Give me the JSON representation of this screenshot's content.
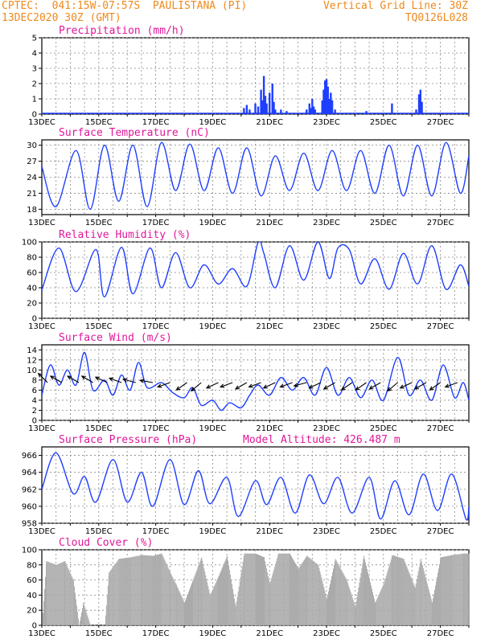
{
  "header": {
    "line1": "CPTEC:  041:15W-07:57S  PAULISTANA (PI)",
    "line2": "13DEC2020 30Z (GMT)",
    "grid_note": "Vertical Grid Line: 30Z",
    "code": "TQ0126L028"
  },
  "x_labels": [
    "13DEC",
    "15DEC",
    "17DEC",
    "19DEC",
    "21DEC",
    "23DEC",
    "25DEC",
    "27DEC"
  ],
  "chart_data": [
    {
      "id": "precip",
      "type": "bar",
      "title": "Precipitation (mm/h)",
      "ylim": [
        0,
        5
      ],
      "yticks": [
        0,
        1,
        2,
        3,
        4,
        5
      ],
      "color": "#1f3fff",
      "points": [
        [
          20.1,
          0.4
        ],
        [
          20.2,
          0.6
        ],
        [
          20.3,
          0.3
        ],
        [
          20.5,
          0.7
        ],
        [
          20.6,
          0.5
        ],
        [
          20.7,
          1.6
        ],
        [
          20.75,
          0.9
        ],
        [
          20.8,
          2.5
        ],
        [
          20.85,
          1.2
        ],
        [
          20.9,
          0.7
        ],
        [
          21.0,
          1.4
        ],
        [
          21.1,
          2.0
        ],
        [
          21.15,
          0.8
        ],
        [
          21.2,
          0.3
        ],
        [
          21.4,
          0.3
        ],
        [
          21.6,
          0.2
        ],
        [
          22.3,
          0.3
        ],
        [
          22.4,
          0.7
        ],
        [
          22.45,
          0.4
        ],
        [
          22.5,
          1.0
        ],
        [
          22.55,
          0.5
        ],
        [
          22.6,
          0.3
        ],
        [
          22.85,
          0.9
        ],
        [
          22.9,
          1.6
        ],
        [
          22.95,
          2.2
        ],
        [
          23.0,
          2.3
        ],
        [
          23.05,
          1.8
        ],
        [
          23.1,
          1.0
        ],
        [
          23.15,
          1.4
        ],
        [
          23.2,
          0.9
        ],
        [
          23.3,
          0.3
        ],
        [
          24.4,
          0.2
        ],
        [
          25.3,
          0.7
        ],
        [
          26.15,
          0.3
        ],
        [
          26.25,
          1.3
        ],
        [
          26.3,
          1.6
        ],
        [
          26.35,
          0.8
        ]
      ]
    },
    {
      "id": "temp",
      "type": "line",
      "title": "Surface Temperature (nC)",
      "ylim": [
        17,
        31
      ],
      "yticks": [
        18,
        21,
        24,
        27,
        30
      ],
      "color": "#1f3fff",
      "points": [
        [
          13.0,
          26
        ],
        [
          13.5,
          18.5
        ],
        [
          14.2,
          29
        ],
        [
          14.7,
          18
        ],
        [
          15.2,
          30
        ],
        [
          15.7,
          19.5
        ],
        [
          16.2,
          30
        ],
        [
          16.7,
          18.5
        ],
        [
          17.2,
          30.5
        ],
        [
          17.7,
          21.5
        ],
        [
          18.2,
          30.2
        ],
        [
          18.7,
          21.5
        ],
        [
          19.2,
          29.5
        ],
        [
          19.7,
          21
        ],
        [
          20.2,
          29.5
        ],
        [
          20.7,
          20.5
        ],
        [
          21.2,
          28
        ],
        [
          21.7,
          21.5
        ],
        [
          22.2,
          28.5
        ],
        [
          22.7,
          21.5
        ],
        [
          23.2,
          29
        ],
        [
          23.7,
          21.5
        ],
        [
          24.2,
          29
        ],
        [
          24.7,
          21
        ],
        [
          25.2,
          30
        ],
        [
          25.7,
          20.5
        ],
        [
          26.2,
          30
        ],
        [
          26.7,
          20.5
        ],
        [
          27.2,
          30.5
        ],
        [
          27.7,
          21
        ],
        [
          28.0,
          28
        ]
      ]
    },
    {
      "id": "rh",
      "type": "line",
      "title": "Relative Humidity (%)",
      "ylim": [
        0,
        100
      ],
      "yticks": [
        0,
        20,
        40,
        60,
        80,
        100
      ],
      "color": "#1f3fff",
      "points": [
        [
          13.0,
          37
        ],
        [
          13.6,
          92
        ],
        [
          14.2,
          35
        ],
        [
          14.9,
          90
        ],
        [
          15.2,
          28
        ],
        [
          15.8,
          93
        ],
        [
          16.2,
          32
        ],
        [
          16.8,
          92
        ],
        [
          17.2,
          40
        ],
        [
          17.7,
          86
        ],
        [
          18.2,
          40
        ],
        [
          18.7,
          70
        ],
        [
          19.2,
          45
        ],
        [
          19.7,
          65
        ],
        [
          20.2,
          42
        ],
        [
          20.6,
          100
        ],
        [
          20.8,
          85
        ],
        [
          21.2,
          40
        ],
        [
          21.7,
          95
        ],
        [
          22.2,
          50
        ],
        [
          22.7,
          100
        ],
        [
          23.1,
          52
        ],
        [
          23.4,
          92
        ],
        [
          23.8,
          90
        ],
        [
          24.2,
          45
        ],
        [
          24.7,
          78
        ],
        [
          25.2,
          38
        ],
        [
          25.7,
          85
        ],
        [
          26.2,
          45
        ],
        [
          26.7,
          95
        ],
        [
          27.2,
          38
        ],
        [
          27.7,
          70
        ],
        [
          28.0,
          42
        ]
      ]
    },
    {
      "id": "wind",
      "type": "line",
      "title": "Surface Wind (m/s)",
      "ylim": [
        0,
        15
      ],
      "yticks": [
        0,
        2,
        4,
        6,
        8,
        10,
        12,
        14
      ],
      "color": "#1f3fff",
      "points": [
        [
          13.0,
          5
        ],
        [
          13.3,
          11
        ],
        [
          13.6,
          7
        ],
        [
          13.9,
          10
        ],
        [
          14.2,
          7
        ],
        [
          14.5,
          13.5
        ],
        [
          14.8,
          6
        ],
        [
          15.2,
          8
        ],
        [
          15.5,
          5
        ],
        [
          15.8,
          9
        ],
        [
          16.1,
          6
        ],
        [
          16.4,
          11.5
        ],
        [
          16.7,
          6.5
        ],
        [
          17.2,
          7.5
        ],
        [
          17.6,
          5.5
        ],
        [
          18.0,
          4.5
        ],
        [
          18.3,
          6.5
        ],
        [
          18.6,
          3
        ],
        [
          19.0,
          4
        ],
        [
          19.3,
          2
        ],
        [
          19.6,
          3.5
        ],
        [
          20.0,
          2.5
        ],
        [
          20.3,
          5
        ],
        [
          20.6,
          7
        ],
        [
          21.0,
          5
        ],
        [
          21.4,
          8.5
        ],
        [
          21.8,
          6
        ],
        [
          22.2,
          8.5
        ],
        [
          22.6,
          5
        ],
        [
          23.0,
          10.5
        ],
        [
          23.4,
          5
        ],
        [
          23.8,
          8.5
        ],
        [
          24.2,
          4.5
        ],
        [
          24.6,
          8
        ],
        [
          25.0,
          4
        ],
        [
          25.5,
          12.5
        ],
        [
          25.9,
          5
        ],
        [
          26.3,
          8
        ],
        [
          26.7,
          4
        ],
        [
          27.1,
          11
        ],
        [
          27.5,
          4.5
        ],
        [
          27.8,
          7.5
        ],
        [
          28.0,
          4
        ]
      ],
      "arrows": [
        [
          13.2,
          7.5,
          135
        ],
        [
          13.7,
          7.5,
          150
        ],
        [
          14.3,
          7.5,
          150
        ],
        [
          14.8,
          7.5,
          150
        ],
        [
          15.3,
          7.5,
          155
        ],
        [
          15.8,
          7.5,
          160
        ],
        [
          16.3,
          7.5,
          165
        ],
        [
          16.9,
          7.5,
          170
        ],
        [
          17.5,
          7.5,
          200
        ],
        [
          18.1,
          7.5,
          215
        ],
        [
          18.6,
          7.5,
          220
        ],
        [
          19.2,
          7.5,
          205
        ],
        [
          19.7,
          7.5,
          200
        ],
        [
          20.2,
          7.5,
          210
        ],
        [
          20.7,
          7.5,
          200
        ],
        [
          21.2,
          7.5,
          205
        ],
        [
          21.8,
          7.5,
          200
        ],
        [
          22.3,
          7.5,
          195
        ],
        [
          22.8,
          7.5,
          205
        ],
        [
          23.3,
          7.5,
          210
        ],
        [
          23.9,
          7.5,
          215
        ],
        [
          24.4,
          7.5,
          215
        ],
        [
          24.9,
          7.5,
          210
        ],
        [
          25.5,
          7.5,
          220
        ],
        [
          26.0,
          7.5,
          205
        ],
        [
          26.5,
          7.5,
          210
        ],
        [
          27.0,
          7.5,
          215
        ],
        [
          27.6,
          7.5,
          200
        ]
      ]
    },
    {
      "id": "pres",
      "type": "line",
      "title": "Surface Pressure (hPa)",
      "subtitle": "Model Altitude: 426.487 m",
      "ylim": [
        958,
        967
      ],
      "yticks": [
        958,
        960,
        962,
        964,
        966
      ],
      "color": "#1f3fff",
      "points": [
        [
          13.0,
          962
        ],
        [
          13.5,
          966.3
        ],
        [
          14.1,
          961.5
        ],
        [
          14.5,
          963.5
        ],
        [
          14.9,
          960.5
        ],
        [
          15.5,
          965.5
        ],
        [
          16.0,
          960.5
        ],
        [
          16.5,
          964
        ],
        [
          16.9,
          960
        ],
        [
          17.5,
          965.5
        ],
        [
          18.0,
          960.2
        ],
        [
          18.5,
          964.2
        ],
        [
          18.9,
          960.3
        ],
        [
          19.5,
          963.4
        ],
        [
          19.9,
          958.8
        ],
        [
          20.5,
          963
        ],
        [
          20.9,
          960.2
        ],
        [
          21.4,
          963.4
        ],
        [
          21.9,
          959.2
        ],
        [
          22.4,
          963.7
        ],
        [
          22.9,
          960.3
        ],
        [
          23.4,
          963.4
        ],
        [
          23.9,
          959.2
        ],
        [
          24.5,
          963.4
        ],
        [
          24.9,
          958.5
        ],
        [
          25.4,
          963
        ],
        [
          25.9,
          959
        ],
        [
          26.4,
          963.8
        ],
        [
          26.9,
          959.5
        ],
        [
          27.4,
          963.8
        ],
        [
          27.9,
          958.5
        ],
        [
          28.0,
          960
        ]
      ]
    },
    {
      "id": "cloud",
      "type": "area",
      "title": "Cloud Cover (%)",
      "ylim": [
        0,
        100
      ],
      "yticks": [
        0,
        20,
        40,
        60,
        80,
        100
      ],
      "color": "#aaaaaa",
      "points": [
        [
          13.0,
          0
        ],
        [
          13.15,
          85
        ],
        [
          13.5,
          80
        ],
        [
          13.8,
          85
        ],
        [
          14.1,
          60
        ],
        [
          14.3,
          0
        ],
        [
          14.45,
          30
        ],
        [
          14.7,
          0
        ],
        [
          15.2,
          0
        ],
        [
          15.35,
          70
        ],
        [
          15.7,
          88
        ],
        [
          16.1,
          90
        ],
        [
          16.5,
          93
        ],
        [
          16.9,
          92
        ],
        [
          17.2,
          95
        ],
        [
          17.5,
          70
        ],
        [
          17.7,
          55
        ],
        [
          18.0,
          30
        ],
        [
          18.3,
          60
        ],
        [
          18.6,
          90
        ],
        [
          18.9,
          40
        ],
        [
          19.2,
          65
        ],
        [
          19.5,
          92
        ],
        [
          19.8,
          25
        ],
        [
          20.1,
          95
        ],
        [
          20.5,
          95
        ],
        [
          20.8,
          90
        ],
        [
          21.0,
          55
        ],
        [
          21.3,
          95
        ],
        [
          21.7,
          95
        ],
        [
          22.0,
          75
        ],
        [
          22.3,
          92
        ],
        [
          22.7,
          80
        ],
        [
          23.0,
          35
        ],
        [
          23.3,
          88
        ],
        [
          23.7,
          60
        ],
        [
          24.0,
          25
        ],
        [
          24.3,
          92
        ],
        [
          24.7,
          30
        ],
        [
          25.0,
          55
        ],
        [
          25.3,
          93
        ],
        [
          25.7,
          88
        ],
        [
          26.1,
          50
        ],
        [
          26.3,
          88
        ],
        [
          26.7,
          30
        ],
        [
          27.0,
          90
        ],
        [
          27.4,
          93
        ],
        [
          27.8,
          95
        ],
        [
          28.0,
          95
        ]
      ]
    }
  ]
}
